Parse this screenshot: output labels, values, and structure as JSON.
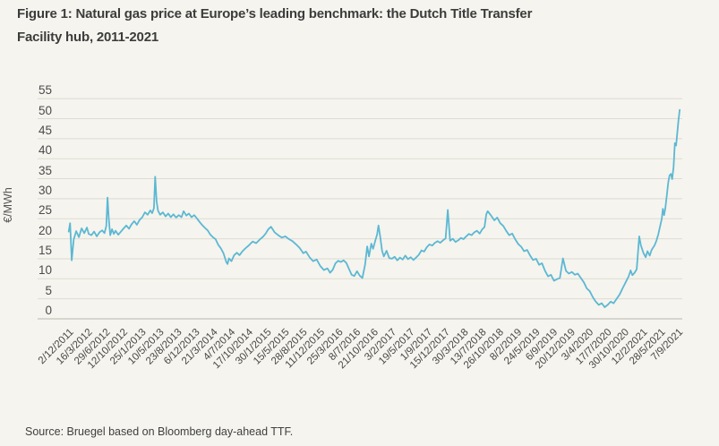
{
  "title_line1": "Figure 1: Natural gas price at Europe’s leading benchmark: the Dutch Title Transfer",
  "title_line2": "Facility hub, 2011-2021",
  "source_note": "Source: Bruegel based on Bloomberg day-ahead TTF.",
  "colors": {
    "background": "#f5f4ee",
    "line": "#5cb8d3",
    "gridline": "#dddbd2",
    "baseline": "#b8b6ad",
    "axis_text": "#4b4b4b"
  },
  "chart_data": {
    "type": "line",
    "title": "Figure 1: Natural gas price at Europe’s leading benchmark: the Dutch Title Transfer Facility hub, 2011-2021",
    "xlabel": "",
    "ylabel": "€/MWh",
    "ylim": [
      0,
      55
    ],
    "y_ticks": [
      0,
      5,
      10,
      15,
      20,
      25,
      30,
      35,
      40,
      45,
      50,
      55
    ],
    "grid": "horizontal",
    "legend_position": "none",
    "x_tick_labels": [
      "2/12/2011",
      "16/3/2012",
      "29/6/2012",
      "12/10/2012",
      "25/1/2013",
      "10/5/2013",
      "23/8/2013",
      "6/12/2013",
      "21/3/2014",
      "4/7/2014",
      "17/10/2014",
      "30/1/2015",
      "15/5/2015",
      "28/8/2015",
      "11/12/2015",
      "25/3/2016",
      "8/7/2016",
      "21/10/2016",
      "3/2/2017",
      "19/5/2017",
      "1/9/2017",
      "15/12/2017",
      "30/3/2018",
      "13/7/2018",
      "26/10/2018",
      "8/2/2019",
      "24/5/2019",
      "6/9/2019",
      "20/12/2019",
      "3/4/2020",
      "17/7/2020",
      "30/10/2020",
      "12/2/2021",
      "28/5/2021",
      "7/9/2021"
    ],
    "x_unit": "tick_index (position along the 35 date ticks above, ticks spaced 15 weeks apart)",
    "series": [
      {
        "name": "TTF day-ahead natural gas price (€/MWh)",
        "points": [
          [
            0,
            21.8
          ],
          [
            0.08,
            23.9
          ],
          [
            0.17,
            14.6
          ],
          [
            0.28,
            19.8
          ],
          [
            0.42,
            21.9
          ],
          [
            0.57,
            20.4
          ],
          [
            0.72,
            22.6
          ],
          [
            0.87,
            21.4
          ],
          [
            1.02,
            22.8
          ],
          [
            1.12,
            21.2
          ],
          [
            1.27,
            20.9
          ],
          [
            1.42,
            21.8
          ],
          [
            1.57,
            20.6
          ],
          [
            1.72,
            21.6
          ],
          [
            1.87,
            22.1
          ],
          [
            2.0,
            21.4
          ],
          [
            2.1,
            23.2
          ],
          [
            2.17,
            30.3
          ],
          [
            2.24,
            25.0
          ],
          [
            2.32,
            20.9
          ],
          [
            2.42,
            22.4
          ],
          [
            2.52,
            21.2
          ],
          [
            2.62,
            22.0
          ],
          [
            2.77,
            21.0
          ],
          [
            2.92,
            21.8
          ],
          [
            3.07,
            22.6
          ],
          [
            3.22,
            23.3
          ],
          [
            3.37,
            22.5
          ],
          [
            3.51,
            23.6
          ],
          [
            3.66,
            24.4
          ],
          [
            3.81,
            23.5
          ],
          [
            3.96,
            24.7
          ],
          [
            4.11,
            25.4
          ],
          [
            4.26,
            26.6
          ],
          [
            4.41,
            26.0
          ],
          [
            4.56,
            27.1
          ],
          [
            4.66,
            26.4
          ],
          [
            4.76,
            27.6
          ],
          [
            4.83,
            35.5
          ],
          [
            4.91,
            29.3
          ],
          [
            4.99,
            27.0
          ],
          [
            5.11,
            26.0
          ],
          [
            5.26,
            26.6
          ],
          [
            5.41,
            25.6
          ],
          [
            5.56,
            26.3
          ],
          [
            5.7,
            25.4
          ],
          [
            5.85,
            26.1
          ],
          [
            6.0,
            25.3
          ],
          [
            6.15,
            25.9
          ],
          [
            6.3,
            25.4
          ],
          [
            6.42,
            26.9
          ],
          [
            6.57,
            25.8
          ],
          [
            6.71,
            26.3
          ],
          [
            6.86,
            25.4
          ],
          [
            7.01,
            25.9
          ],
          [
            7.16,
            25.1
          ],
          [
            7.31,
            24.2
          ],
          [
            7.46,
            23.4
          ],
          [
            7.61,
            22.7
          ],
          [
            7.76,
            22.1
          ],
          [
            7.9,
            21.1
          ],
          [
            8.05,
            20.4
          ],
          [
            8.2,
            19.9
          ],
          [
            8.35,
            18.5
          ],
          [
            8.5,
            17.6
          ],
          [
            8.65,
            16.3
          ],
          [
            8.8,
            14.2
          ],
          [
            8.87,
            13.7
          ],
          [
            8.95,
            15.1
          ],
          [
            9.09,
            14.4
          ],
          [
            9.24,
            15.9
          ],
          [
            9.39,
            16.5
          ],
          [
            9.54,
            15.9
          ],
          [
            9.69,
            16.8
          ],
          [
            9.87,
            17.6
          ],
          [
            10.07,
            18.4
          ],
          [
            10.27,
            19.3
          ],
          [
            10.47,
            18.9
          ],
          [
            10.67,
            19.8
          ],
          [
            10.87,
            20.6
          ],
          [
            11.0,
            21.3
          ],
          [
            11.15,
            22.4
          ],
          [
            11.3,
            23.0
          ],
          [
            11.5,
            21.6
          ],
          [
            11.7,
            20.9
          ],
          [
            11.9,
            20.3
          ],
          [
            12.1,
            20.6
          ],
          [
            12.3,
            19.9
          ],
          [
            12.5,
            19.4
          ],
          [
            12.7,
            18.6
          ],
          [
            12.9,
            17.7
          ],
          [
            13.1,
            16.4
          ],
          [
            13.25,
            16.8
          ],
          [
            13.45,
            15.4
          ],
          [
            13.65,
            14.4
          ],
          [
            13.85,
            14.8
          ],
          [
            14.05,
            13.2
          ],
          [
            14.25,
            12.2
          ],
          [
            14.45,
            12.6
          ],
          [
            14.6,
            11.5
          ],
          [
            14.75,
            12.3
          ],
          [
            14.9,
            13.9
          ],
          [
            15.05,
            14.5
          ],
          [
            15.2,
            14.2
          ],
          [
            15.35,
            14.6
          ],
          [
            15.5,
            14.0
          ],
          [
            15.65,
            12.5
          ],
          [
            15.8,
            11.0
          ],
          [
            15.95,
            10.7
          ],
          [
            16.1,
            11.9
          ],
          [
            16.25,
            10.8
          ],
          [
            16.4,
            10.2
          ],
          [
            16.55,
            13.5
          ],
          [
            16.67,
            18.1
          ],
          [
            16.77,
            15.6
          ],
          [
            16.9,
            18.8
          ],
          [
            17.0,
            17.5
          ],
          [
            17.12,
            19.5
          ],
          [
            17.22,
            21.0
          ],
          [
            17.3,
            23.3
          ],
          [
            17.4,
            20.4
          ],
          [
            17.5,
            17.0
          ],
          [
            17.6,
            15.6
          ],
          [
            17.75,
            17.0
          ],
          [
            17.9,
            15.2
          ],
          [
            18.05,
            15.0
          ],
          [
            18.2,
            15.5
          ],
          [
            18.35,
            14.6
          ],
          [
            18.5,
            15.3
          ],
          [
            18.65,
            14.8
          ],
          [
            18.8,
            15.8
          ],
          [
            18.95,
            14.9
          ],
          [
            19.1,
            15.4
          ],
          [
            19.25,
            14.7
          ],
          [
            19.4,
            15.3
          ],
          [
            19.55,
            16.0
          ],
          [
            19.7,
            17.1
          ],
          [
            19.85,
            16.8
          ],
          [
            20.0,
            17.9
          ],
          [
            20.15,
            18.6
          ],
          [
            20.3,
            18.3
          ],
          [
            20.45,
            19.0
          ],
          [
            20.6,
            19.4
          ],
          [
            20.75,
            19.0
          ],
          [
            20.9,
            19.6
          ],
          [
            21.05,
            20.1
          ],
          [
            21.17,
            27.2
          ],
          [
            21.3,
            19.5
          ],
          [
            21.45,
            20.0
          ],
          [
            21.6,
            19.2
          ],
          [
            21.75,
            19.6
          ],
          [
            21.9,
            20.2
          ],
          [
            22.05,
            19.9
          ],
          [
            22.2,
            20.6
          ],
          [
            22.35,
            21.2
          ],
          [
            22.5,
            20.9
          ],
          [
            22.65,
            21.6
          ],
          [
            22.8,
            22.0
          ],
          [
            22.95,
            21.3
          ],
          [
            23.1,
            22.4
          ],
          [
            23.22,
            22.9
          ],
          [
            23.32,
            26.1
          ],
          [
            23.4,
            26.9
          ],
          [
            23.6,
            25.7
          ],
          [
            23.77,
            24.6
          ],
          [
            23.93,
            25.3
          ],
          [
            24.1,
            23.9
          ],
          [
            24.27,
            23.2
          ],
          [
            24.43,
            22.0
          ],
          [
            24.6,
            20.9
          ],
          [
            24.77,
            21.3
          ],
          [
            24.93,
            19.9
          ],
          [
            25.1,
            18.7
          ],
          [
            25.27,
            18.0
          ],
          [
            25.43,
            16.9
          ],
          [
            25.6,
            17.2
          ],
          [
            25.77,
            15.8
          ],
          [
            25.93,
            14.7
          ],
          [
            26.1,
            15.0
          ],
          [
            26.27,
            13.5
          ],
          [
            26.43,
            13.9
          ],
          [
            26.6,
            12.0
          ],
          [
            26.77,
            10.6
          ],
          [
            26.93,
            11.0
          ],
          [
            27.1,
            9.5
          ],
          [
            27.27,
            9.9
          ],
          [
            27.43,
            10.2
          ],
          [
            27.6,
            15.1
          ],
          [
            27.77,
            12.0
          ],
          [
            27.93,
            11.3
          ],
          [
            28.1,
            11.7
          ],
          [
            28.27,
            11.0
          ],
          [
            28.43,
            11.3
          ],
          [
            28.6,
            10.2
          ],
          [
            28.77,
            9.1
          ],
          [
            28.93,
            7.6
          ],
          [
            29.1,
            6.9
          ],
          [
            29.27,
            5.4
          ],
          [
            29.43,
            4.3
          ],
          [
            29.6,
            3.5
          ],
          [
            29.77,
            3.9
          ],
          [
            29.93,
            2.9
          ],
          [
            30.1,
            3.5
          ],
          [
            30.27,
            4.3
          ],
          [
            30.43,
            3.9
          ],
          [
            30.6,
            5.0
          ],
          [
            30.77,
            6.1
          ],
          [
            30.93,
            7.6
          ],
          [
            31.1,
            9.1
          ],
          [
            31.27,
            10.6
          ],
          [
            31.38,
            12.1
          ],
          [
            31.48,
            10.9
          ],
          [
            31.6,
            11.5
          ],
          [
            31.72,
            12.4
          ],
          [
            31.86,
            20.6
          ],
          [
            31.95,
            18.4
          ],
          [
            32.1,
            16.4
          ],
          [
            32.22,
            15.4
          ],
          [
            32.32,
            16.9
          ],
          [
            32.45,
            15.8
          ],
          [
            32.55,
            17.2
          ],
          [
            32.72,
            18.4
          ],
          [
            32.82,
            19.5
          ],
          [
            32.92,
            21.0
          ],
          [
            33.02,
            23.0
          ],
          [
            33.12,
            25.0
          ],
          [
            33.18,
            27.5
          ],
          [
            33.25,
            25.9
          ],
          [
            33.32,
            27.7
          ],
          [
            33.4,
            30.8
          ],
          [
            33.48,
            34.0
          ],
          [
            33.55,
            35.8
          ],
          [
            33.63,
            36.2
          ],
          [
            33.7,
            34.9
          ],
          [
            33.78,
            38.0
          ],
          [
            33.85,
            43.9
          ],
          [
            33.92,
            43.3
          ],
          [
            33.98,
            46.2
          ],
          [
            34.05,
            49.5
          ],
          [
            34.12,
            52.2
          ]
        ]
      }
    ],
    "source": "Source: Bruegel based on Bloomberg day-ahead TTF."
  }
}
